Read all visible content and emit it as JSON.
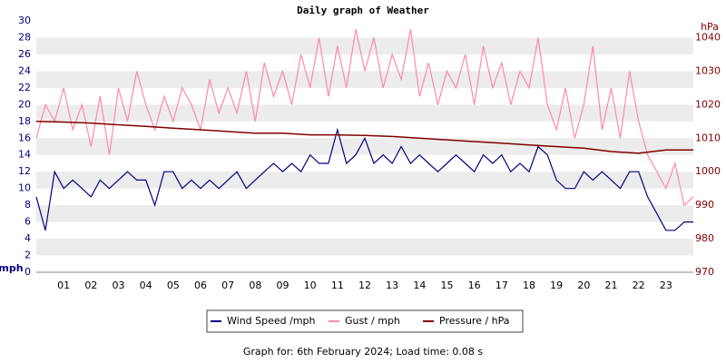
{
  "chart_data": {
    "type": "line",
    "title": "Daily graph of Weather",
    "y_unit": "mph",
    "y2_unit": "hPa",
    "footer": "Graph for: 6th February 2024; Load time: 0.08 s",
    "xlim": [
      0,
      24
    ],
    "xticks": [
      {
        "value": 1,
        "label": "01"
      },
      {
        "value": 2,
        "label": "02"
      },
      {
        "value": 3,
        "label": "03"
      },
      {
        "value": 4,
        "label": "04"
      },
      {
        "value": 5,
        "label": "05"
      },
      {
        "value": 6,
        "label": "06"
      },
      {
        "value": 7,
        "label": "07"
      },
      {
        "value": 8,
        "label": "08"
      },
      {
        "value": 9,
        "label": "09"
      },
      {
        "value": 10,
        "label": "10"
      },
      {
        "value": 11,
        "label": "11"
      },
      {
        "value": 12,
        "label": "12"
      },
      {
        "value": 13,
        "label": "13"
      },
      {
        "value": 14,
        "label": "14"
      },
      {
        "value": 15,
        "label": "15"
      },
      {
        "value": 16,
        "label": "16"
      },
      {
        "value": 17,
        "label": "17"
      },
      {
        "value": 18,
        "label": "18"
      },
      {
        "value": 19,
        "label": "19"
      },
      {
        "value": 20,
        "label": "20"
      },
      {
        "value": 21,
        "label": "21"
      },
      {
        "value": 22,
        "label": "22"
      },
      {
        "value": 23,
        "label": "23"
      }
    ],
    "ylim": [
      0,
      30
    ],
    "yticks": [
      0,
      2,
      4,
      6,
      8,
      10,
      12,
      14,
      16,
      18,
      20,
      22,
      24,
      26,
      28,
      30
    ],
    "y2lim": [
      970,
      1045
    ],
    "y2ticks": [
      970,
      980,
      990,
      1000,
      1010,
      1020,
      1030,
      1040
    ],
    "grid": "bands",
    "x": [
      0,
      0.33,
      0.67,
      1,
      1.33,
      1.67,
      2,
      2.33,
      2.67,
      3,
      3.33,
      3.67,
      4,
      4.33,
      4.67,
      5,
      5.33,
      5.67,
      6,
      6.33,
      6.67,
      7,
      7.33,
      7.67,
      8,
      8.33,
      8.67,
      9,
      9.33,
      9.67,
      10,
      10.33,
      10.67,
      11,
      11.33,
      11.67,
      12,
      12.33,
      12.67,
      13,
      13.33,
      13.67,
      14,
      14.33,
      14.67,
      15,
      15.33,
      15.67,
      16,
      16.33,
      16.67,
      17,
      17.33,
      17.67,
      18,
      18.33,
      18.67,
      19,
      19.33,
      19.67,
      20,
      20.33,
      20.67,
      21,
      21.33,
      21.67,
      22,
      22.33,
      22.67,
      23,
      23.33,
      23.67,
      24
    ],
    "series": [
      {
        "name": "Wind Speed /mph",
        "color": "#000080",
        "values": [
          9,
          5,
          12,
          10,
          11,
          10,
          9,
          11,
          10,
          11,
          12,
          11,
          11,
          8,
          12,
          12,
          10,
          11,
          10,
          11,
          10,
          11,
          12,
          10,
          11,
          12,
          13,
          12,
          13,
          12,
          14,
          13,
          13,
          17,
          13,
          14,
          16,
          13,
          14,
          13,
          15,
          13,
          14,
          13,
          12,
          13,
          14,
          13,
          12,
          14,
          13,
          14,
          12,
          13,
          12,
          15,
          14,
          11,
          10,
          10,
          12,
          11,
          12,
          11,
          10,
          12,
          12,
          9,
          7,
          5,
          5,
          6,
          6
        ]
      },
      {
        "name": "Gust / mph",
        "color": "#ff88aa",
        "values": [
          16,
          20,
          18,
          22,
          17,
          20,
          15,
          21,
          14,
          22,
          18,
          24,
          20,
          17,
          21,
          18,
          22,
          20,
          17,
          23,
          19,
          22,
          19,
          24,
          18,
          25,
          21,
          24,
          20,
          26,
          22,
          28,
          21,
          27,
          22,
          29,
          24,
          28,
          22,
          26,
          23,
          29,
          21,
          25,
          20,
          24,
          22,
          26,
          20,
          27,
          22,
          25,
          20,
          24,
          22,
          28,
          20,
          17,
          22,
          16,
          20,
          27,
          17,
          22,
          16,
          24,
          18,
          14,
          12,
          10,
          13,
          8,
          9
        ]
      },
      {
        "name": "Pressure / hPa",
        "color": "#800000",
        "axis": "y2",
        "x": [
          0,
          1,
          2,
          3,
          4,
          5,
          6,
          7,
          8,
          9,
          10,
          11,
          12,
          13,
          14,
          15,
          16,
          17,
          18,
          19,
          20,
          21,
          22,
          23,
          24
        ],
        "values": [
          1015,
          1014.8,
          1014.5,
          1014,
          1013.5,
          1013,
          1012.5,
          1012,
          1011.5,
          1011.5,
          1011,
          1011,
          1010.8,
          1010.5,
          1010,
          1009.5,
          1009,
          1008.5,
          1008,
          1007.5,
          1007,
          1006,
          1005.5,
          1006.5,
          1006.5
        ]
      }
    ]
  }
}
